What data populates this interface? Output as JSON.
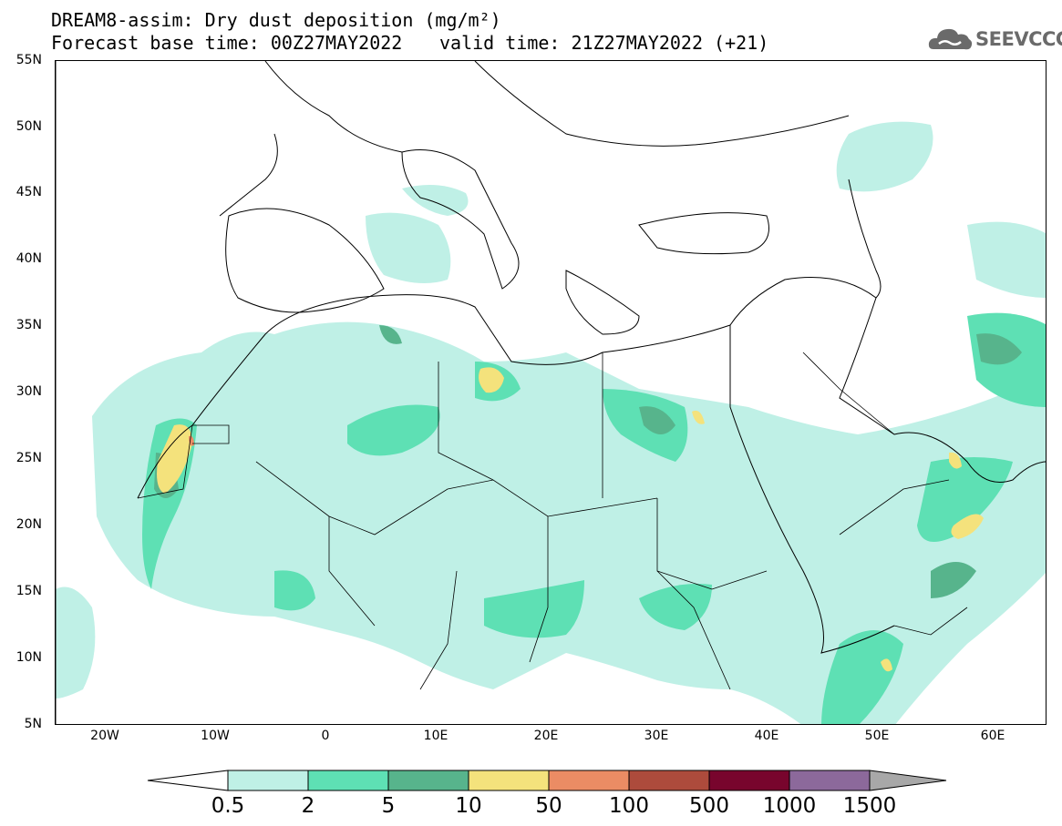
{
  "title": {
    "line1": "DREAM8-assim: Dry dust deposition (mg/m²)",
    "line2_base": "Forecast base time: 00Z27MAY2022",
    "line2_valid": "valid time: 21Z27MAY2022 (+21)"
  },
  "logo": {
    "text": "SEEVCCC",
    "icon": "cloud-icon"
  },
  "map": {
    "lon_range": [
      -25,
      65
    ],
    "lat_range": [
      5,
      55
    ],
    "lat_labels": [
      "55N",
      "50N",
      "45N",
      "40N",
      "35N",
      "30N",
      "25N",
      "20N",
      "15N",
      "10N",
      "5N"
    ],
    "lon_labels": [
      "20W",
      "10W",
      "0",
      "10E",
      "20E",
      "30E",
      "40E",
      "50E",
      "60E"
    ]
  },
  "colorbar": {
    "levels": [
      "0.5",
      "2",
      "5",
      "10",
      "50",
      "100",
      "500",
      "1000",
      "1500"
    ],
    "colors": [
      "#bff0e6",
      "#5ee0b4",
      "#57b48c",
      "#f4e27c",
      "#eb8c64",
      "#ad4b3c",
      "#78052d",
      "#8c699b"
    ],
    "under_color": "#ffffff",
    "over_color": "#a8a8a8"
  }
}
